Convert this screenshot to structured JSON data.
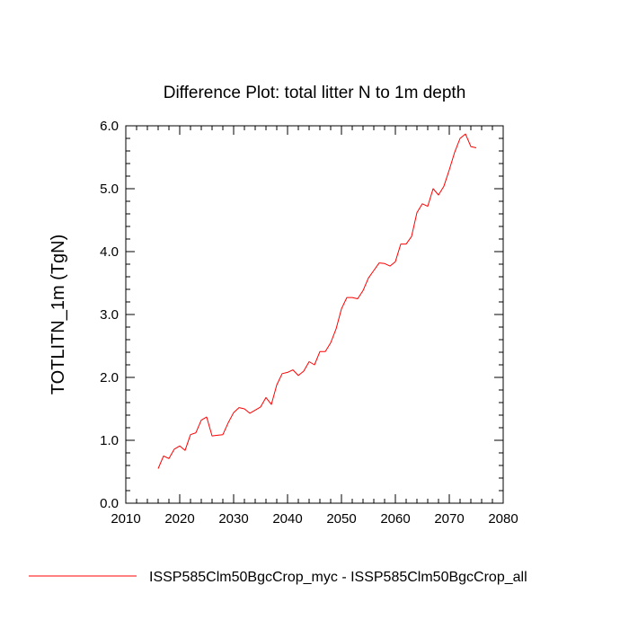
{
  "chart_data": {
    "type": "line",
    "title": "Difference Plot: total litter N to 1m depth",
    "xlabel": "",
    "ylabel": "TOTLITN_1m  (TgN)",
    "xlim": [
      2010,
      2080
    ],
    "ylim": [
      0.0,
      6.0
    ],
    "xticks": [
      2010,
      2020,
      2030,
      2040,
      2050,
      2060,
      2070,
      2080
    ],
    "xtick_labels": [
      "2010",
      "2020",
      "2030",
      "2040",
      "2050",
      "2060",
      "2070",
      "2080"
    ],
    "yticks": [
      0.0,
      1.0,
      2.0,
      3.0,
      4.0,
      5.0,
      6.0
    ],
    "ytick_labels": [
      "0.0",
      "1.0",
      "2.0",
      "3.0",
      "4.0",
      "5.0",
      "6.0"
    ],
    "grid": false,
    "legend_position": "bottom",
    "series": [
      {
        "name": "ISSP585Clm50BgcCrop_myc - ISSP585Clm50BgcCrop_all",
        "color": "#ff0000",
        "x": [
          2016,
          2017,
          2018,
          2019,
          2020,
          2021,
          2022,
          2023,
          2024,
          2025,
          2026,
          2027,
          2028,
          2029,
          2030,
          2031,
          2032,
          2033,
          2034,
          2035,
          2036,
          2037,
          2038,
          2039,
          2040,
          2041,
          2042,
          2043,
          2044,
          2045,
          2046,
          2047,
          2048,
          2049,
          2050,
          2051,
          2052,
          2053,
          2054,
          2055,
          2056,
          2057,
          2058,
          2059,
          2060,
          2061,
          2062,
          2063,
          2064,
          2065,
          2066,
          2067,
          2068,
          2069,
          2070,
          2071,
          2072,
          2073,
          2074,
          2075
        ],
        "y": [
          0.55,
          0.75,
          0.71,
          0.86,
          0.91,
          0.84,
          1.09,
          1.12,
          1.32,
          1.37,
          1.07,
          1.08,
          1.09,
          1.28,
          1.44,
          1.52,
          1.5,
          1.43,
          1.48,
          1.53,
          1.68,
          1.57,
          1.88,
          2.06,
          2.08,
          2.12,
          2.03,
          2.1,
          2.25,
          2.2,
          2.41,
          2.41,
          2.55,
          2.77,
          3.09,
          3.27,
          3.27,
          3.25,
          3.38,
          3.58,
          3.7,
          3.82,
          3.81,
          3.77,
          3.84,
          4.12,
          4.12,
          4.24,
          4.62,
          4.76,
          4.72,
          5.0,
          4.9,
          5.04,
          5.3,
          5.58,
          5.8,
          5.87,
          5.67,
          5.65
        ]
      }
    ]
  }
}
